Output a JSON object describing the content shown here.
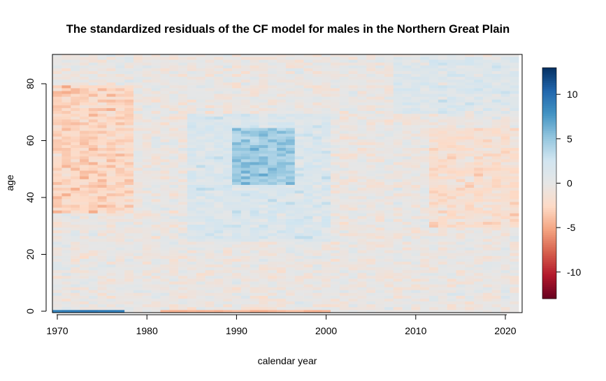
{
  "chart_data": {
    "type": "heatmap",
    "title": "The standardized residuals of the CF model for males in the Northern Great Plain",
    "xlabel": "calendar year",
    "ylabel": "age",
    "x_range": [
      1969,
      2021
    ],
    "y_range": [
      0,
      90
    ],
    "x_ticks": [
      1970,
      1980,
      1990,
      2000,
      2010,
      2020
    ],
    "y_ticks": [
      0,
      20,
      40,
      60,
      80
    ],
    "colorbar": {
      "range": [
        -13,
        13
      ],
      "ticks": [
        10,
        5,
        0,
        -5,
        -10
      ],
      "colors": [
        "#67001f",
        "#b2182b",
        "#d6604d",
        "#f4a582",
        "#fddbc7",
        "#e6e6e6",
        "#d1e5f0",
        "#92c5de",
        "#4393c3",
        "#2166ac",
        "#053061"
      ]
    },
    "residual_patterns": [
      {
        "year_from": 1969,
        "year_to": 1978,
        "age_from": 35,
        "age_to": 80,
        "level": -2.5
      },
      {
        "year_from": 1985,
        "year_to": 2000,
        "age_from": 25,
        "age_to": 70,
        "level": 1.8
      },
      {
        "year_from": 1990,
        "year_to": 1996,
        "age_from": 45,
        "age_to": 65,
        "level": 3.2
      },
      {
        "year_from": 2008,
        "year_to": 2021,
        "age_from": 70,
        "age_to": 90,
        "level": 1.5
      },
      {
        "year_from": 2012,
        "year_to": 2021,
        "age_from": 30,
        "age_to": 65,
        "level": -1.5
      },
      {
        "year_from": 1969,
        "year_to": 1977,
        "age_from": 0,
        "age_to": 1,
        "level": 9
      },
      {
        "year_from": 1982,
        "year_to": 2000,
        "age_from": 0,
        "age_to": 1,
        "level": -4
      }
    ]
  }
}
